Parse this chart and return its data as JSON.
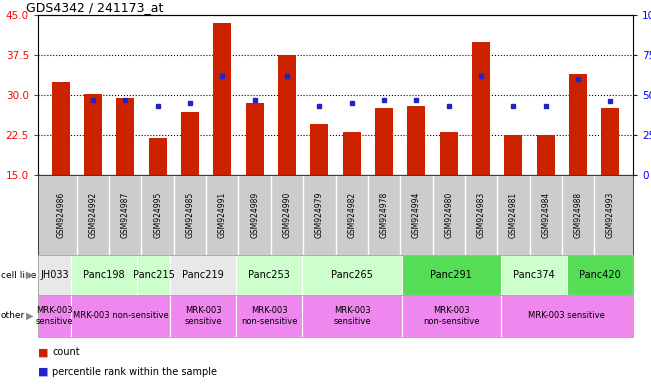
{
  "title": "GDS4342 / 241173_at",
  "samples": [
    "GSM924986",
    "GSM924992",
    "GSM924987",
    "GSM924995",
    "GSM924985",
    "GSM924991",
    "GSM924989",
    "GSM924990",
    "GSM924979",
    "GSM924982",
    "GSM924978",
    "GSM924994",
    "GSM924980",
    "GSM924983",
    "GSM924981",
    "GSM924984",
    "GSM924988",
    "GSM924993"
  ],
  "counts": [
    32.5,
    30.2,
    29.5,
    22.0,
    26.8,
    43.5,
    28.5,
    37.5,
    24.5,
    23.0,
    27.5,
    28.0,
    23.0,
    40.0,
    22.5,
    22.5,
    34.0,
    27.5
  ],
  "percentiles": [
    null,
    47,
    47,
    43,
    45,
    62,
    47,
    62,
    43,
    45,
    47,
    47,
    43,
    62,
    43,
    43,
    60,
    46
  ],
  "ylim_left": [
    15,
    45
  ],
  "ylim_right": [
    0,
    100
  ],
  "yticks_left": [
    15,
    22.5,
    30,
    37.5,
    45
  ],
  "yticks_right": [
    0,
    25,
    50,
    75,
    100
  ],
  "bar_color": "#cc2200",
  "dot_color": "#2222cc",
  "cell_lines": [
    {
      "name": "JH033",
      "start": 0,
      "end": 1,
      "color": "#e8e8e8"
    },
    {
      "name": "Panc198",
      "start": 1,
      "end": 3,
      "color": "#ccffcc"
    },
    {
      "name": "Panc215",
      "start": 3,
      "end": 4,
      "color": "#ccffcc"
    },
    {
      "name": "Panc219",
      "start": 4,
      "end": 6,
      "color": "#e8e8e8"
    },
    {
      "name": "Panc253",
      "start": 6,
      "end": 8,
      "color": "#ccffcc"
    },
    {
      "name": "Panc265",
      "start": 8,
      "end": 11,
      "color": "#ccffcc"
    },
    {
      "name": "Panc291",
      "start": 11,
      "end": 14,
      "color": "#55dd55"
    },
    {
      "name": "Panc374",
      "start": 14,
      "end": 16,
      "color": "#ccffcc"
    },
    {
      "name": "Panc420",
      "start": 16,
      "end": 18,
      "color": "#55dd55"
    }
  ],
  "other_groups": [
    {
      "name": "MRK-003\nsensitive",
      "start": 0,
      "end": 1,
      "color": "#ee88ee"
    },
    {
      "name": "MRK-003 non-sensitive",
      "start": 1,
      "end": 4,
      "color": "#ee88ee"
    },
    {
      "name": "MRK-003\nsensitive",
      "start": 4,
      "end": 6,
      "color": "#ee88ee"
    },
    {
      "name": "MRK-003\nnon-sensitive",
      "start": 6,
      "end": 8,
      "color": "#ee88ee"
    },
    {
      "name": "MRK-003\nsensitive",
      "start": 8,
      "end": 11,
      "color": "#ee88ee"
    },
    {
      "name": "MRK-003\nnon-sensitive",
      "start": 11,
      "end": 14,
      "color": "#ee88ee"
    },
    {
      "name": "MRK-003 sensitive",
      "start": 14,
      "end": 18,
      "color": "#ee88ee"
    }
  ],
  "xtick_bg": "#cccccc",
  "legend_count_label": "count",
  "legend_pct_label": "percentile rank within the sample"
}
